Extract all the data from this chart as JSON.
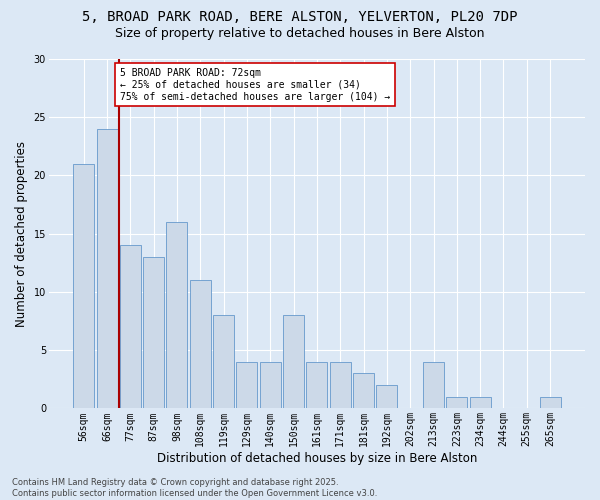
{
  "title_line1": "5, BROAD PARK ROAD, BERE ALSTON, YELVERTON, PL20 7DP",
  "title_line2": "Size of property relative to detached houses in Bere Alston",
  "xlabel": "Distribution of detached houses by size in Bere Alston",
  "ylabel": "Number of detached properties",
  "categories": [
    "56sqm",
    "66sqm",
    "77sqm",
    "87sqm",
    "98sqm",
    "108sqm",
    "119sqm",
    "129sqm",
    "140sqm",
    "150sqm",
    "161sqm",
    "171sqm",
    "181sqm",
    "192sqm",
    "202sqm",
    "213sqm",
    "223sqm",
    "234sqm",
    "244sqm",
    "255sqm",
    "265sqm"
  ],
  "values": [
    21,
    24,
    14,
    13,
    16,
    11,
    8,
    4,
    4,
    8,
    4,
    4,
    3,
    2,
    0,
    4,
    1,
    1,
    0,
    0,
    1
  ],
  "bar_color": "#ccd9e8",
  "bar_edge_color": "#6699cc",
  "background_color": "#dce8f5",
  "grid_color": "#ffffff",
  "vline_color": "#aa0000",
  "vline_x_index": 1.5,
  "annotation_title": "5 BROAD PARK ROAD: 72sqm",
  "annotation_line2": "← 25% of detached houses are smaller (34)",
  "annotation_line3": "75% of semi-detached houses are larger (104) →",
  "annotation_box_color": "#ffffff",
  "annotation_box_edge_color": "#cc0000",
  "ylim": [
    0,
    30
  ],
  "yticks": [
    0,
    5,
    10,
    15,
    20,
    25,
    30
  ],
  "footer": "Contains HM Land Registry data © Crown copyright and database right 2025.\nContains public sector information licensed under the Open Government Licence v3.0.",
  "title_fontsize": 10,
  "subtitle_fontsize": 9,
  "axis_label_fontsize": 8.5,
  "tick_fontsize": 7,
  "annotation_fontsize": 7,
  "footer_fontsize": 6
}
